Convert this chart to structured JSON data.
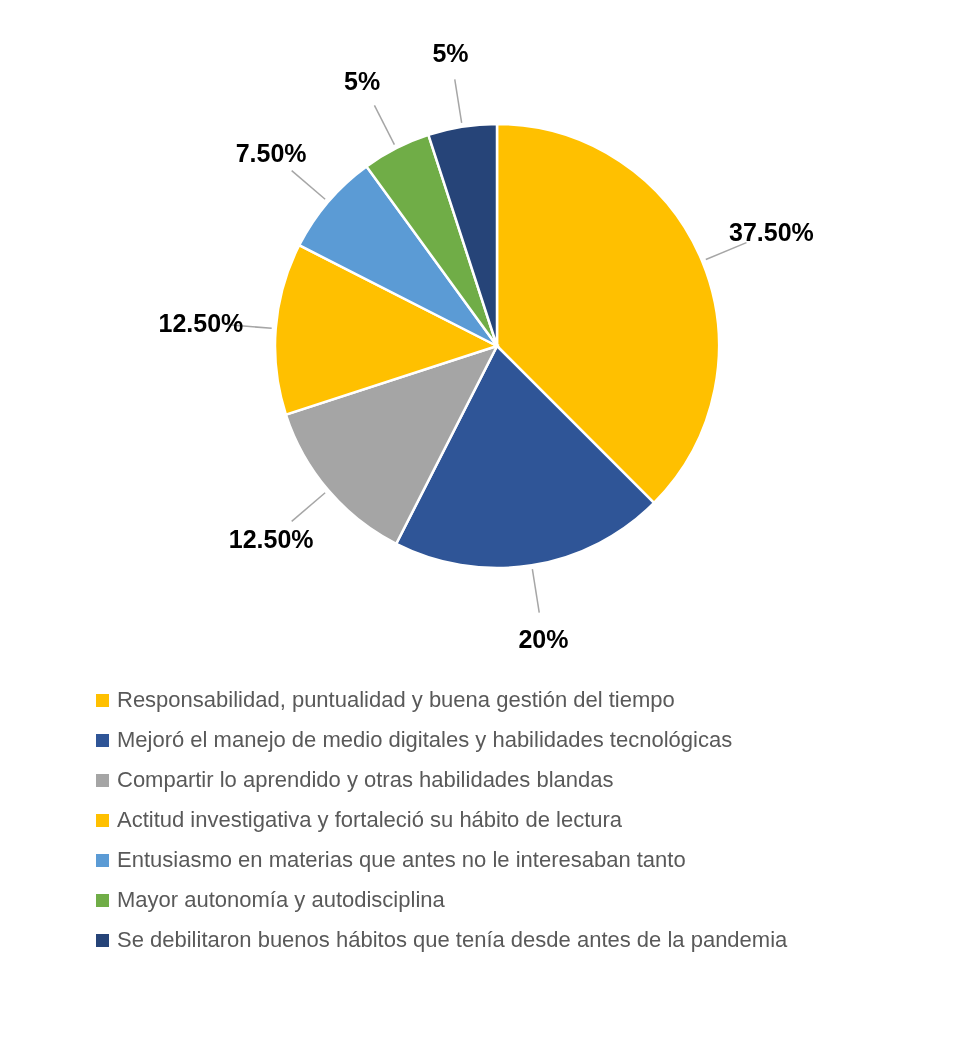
{
  "chart_data": {
    "type": "pie",
    "categories": [
      "Responsabilidad, puntualidad y buena gestión del tiempo",
      "Mejoró el manejo de medio digitales y habilidades tecnológicas",
      "Compartir lo aprendido y otras habilidades blandas",
      "Actitud investigativa y fortaleció su hábito de lectura",
      "Entusiasmo en materias que antes no le interesaban tanto",
      "Mayor autonomía y autodisciplina",
      "Se debilitaron buenos hábitos que tenía desde antes de la pandemia"
    ],
    "values": [
      37.5,
      20,
      12.5,
      12.5,
      7.5,
      5,
      5
    ],
    "value_labels": [
      "37.50%",
      "20%",
      "12.50%",
      "12.50%",
      "7.50%",
      "5%",
      "5%"
    ],
    "colors": [
      "#ffc000",
      "#2f5597",
      "#a5a5a5",
      "#ffc000",
      "#5b9bd5",
      "#70ad47",
      "#264478"
    ],
    "legend": "bottom"
  }
}
